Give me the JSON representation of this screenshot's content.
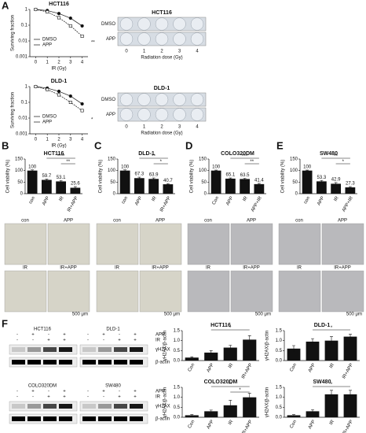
{
  "panels": [
    "A",
    "B",
    "C",
    "D",
    "E",
    "F"
  ],
  "chart_data": [
    {
      "type": "line",
      "title": "HCT116",
      "x": [
        0,
        1,
        2,
        3,
        4
      ],
      "xlim": [
        -0.5,
        4.5
      ],
      "xticks": [
        0,
        1,
        2,
        3,
        4
      ],
      "xlabel": "IR (Gy)",
      "ylabel": "Surviving fraction",
      "log_scale": true,
      "ylim": [
        0.001,
        1
      ],
      "yticks": [
        0.001,
        0.01,
        0.1,
        1
      ],
      "annotations": [
        "**"
      ],
      "series": [
        {
          "name": "DMSO",
          "color": "#111111",
          "marker": "circle",
          "values": [
            1,
            0.85,
            0.55,
            0.28,
            0.09
          ]
        },
        {
          "name": "APP",
          "color": "#111111",
          "marker": "square",
          "values": [
            1,
            0.7,
            0.3,
            0.09,
            0.02
          ]
        }
      ]
    },
    {
      "type": "line",
      "title": "DLD-1",
      "x": [
        0,
        1,
        2,
        3,
        4
      ],
      "xlim": [
        -0.5,
        4.5
      ],
      "xticks": [
        0,
        1,
        2,
        3,
        4
      ],
      "xlabel": "IR (Gy)",
      "ylabel": "Surviving fraction",
      "log_scale": true,
      "ylim": [
        0.001,
        1
      ],
      "yticks": [
        0.001,
        0.01,
        0.1,
        1
      ],
      "annotations": [
        "*"
      ],
      "series": [
        {
          "name": "DMSO",
          "color": "#111111",
          "marker": "circle",
          "values": [
            1,
            0.8,
            0.5,
            0.25,
            0.08
          ]
        },
        {
          "name": "APP",
          "color": "#111111",
          "marker": "square",
          "values": [
            1,
            0.65,
            0.3,
            0.1,
            0.03
          ]
        }
      ]
    },
    {
      "type": "bar",
      "title": "HCT116",
      "categories": [
        "con",
        "APP",
        "IR",
        "IR+APP"
      ],
      "values": [
        100,
        59.7,
        53.1,
        25.6
      ],
      "errors": [
        3,
        3,
        4,
        5
      ],
      "color": "#111111",
      "ylabel": "Cell viability (%)",
      "ylim": [
        0,
        150
      ],
      "yticks": [
        0,
        50,
        100,
        150
      ],
      "annotations": [
        "****",
        "**"
      ]
    },
    {
      "type": "bar",
      "title": "DLD-1",
      "categories": [
        "con",
        "APP",
        "IR",
        "IR+APP"
      ],
      "values": [
        100,
        67.3,
        63.9,
        40.7
      ],
      "errors": [
        3,
        4,
        4,
        3
      ],
      "color": "#111111",
      "ylabel": "Cell viability (%)",
      "ylim": [
        0,
        150
      ],
      "yticks": [
        0,
        50,
        100,
        150
      ],
      "annotations": [
        "**",
        "*"
      ]
    },
    {
      "type": "bar",
      "title": "COLO320DM",
      "categories": [
        "Con",
        "APP",
        "IR",
        "APP+IR"
      ],
      "values": [
        100,
        65.1,
        63.5,
        41.4
      ],
      "errors": [
        2,
        3,
        3,
        3
      ],
      "color": "#111111",
      "ylabel": "Cell viability (%)",
      "ylim": [
        0,
        150
      ],
      "yticks": [
        0,
        50,
        100,
        150
      ],
      "annotations": [
        "***",
        "**"
      ]
    },
    {
      "type": "bar",
      "title": "SW480",
      "categories": [
        "con",
        "APP",
        "IR",
        "APP+IR"
      ],
      "values": [
        100,
        53.3,
        42.9,
        27.3
      ],
      "errors": [
        2,
        4,
        5,
        3
      ],
      "color": "#111111",
      "ylabel": "Cell viability (%)",
      "ylim": [
        0,
        150
      ],
      "yticks": [
        0,
        50,
        100,
        150
      ],
      "annotations": [
        "**",
        "*"
      ]
    },
    {
      "type": "bar",
      "title": "HCT116",
      "categories": [
        "Con",
        "APP",
        "IR",
        "IR+APP"
      ],
      "values": [
        0.15,
        0.4,
        0.65,
        1.05
      ],
      "errors": [
        0.04,
        0.1,
        0.12,
        0.2
      ],
      "color": "#111111",
      "ylabel": "γH2AX/β-actin",
      "ylim": [
        0,
        1.5
      ],
      "yticks": [
        {
          "value": 0,
          "label": "0.0"
        },
        0.5,
        {
          "value": 1,
          "label": "1.0"
        },
        1.5
      ],
      "annotations": [
        "*"
      ]
    },
    {
      "type": "bar",
      "title": "DLD-1",
      "categories": [
        "Con",
        "APP",
        "IR",
        "IR+APP"
      ],
      "values": [
        0.6,
        0.95,
        1.0,
        1.2
      ],
      "errors": [
        0.15,
        0.15,
        0.2,
        0.12
      ],
      "color": "#111111",
      "ylabel": "γH2AX/β-actin",
      "ylim": [
        0,
        1.5
      ],
      "yticks": [
        {
          "value": 0,
          "label": "0.0"
        },
        0.5,
        {
          "value": 1,
          "label": "1.0"
        },
        1.5
      ],
      "annotations": [
        "*"
      ]
    },
    {
      "type": "bar",
      "title": "COLO320DM",
      "categories": [
        "Con",
        "APP",
        "IR",
        "IR+APP"
      ],
      "values": [
        0.1,
        0.3,
        0.6,
        1.0
      ],
      "errors": [
        0.03,
        0.06,
        0.25,
        0.2
      ],
      "color": "#111111",
      "ylabel": "γH2AX/β-actin",
      "ylim": [
        0,
        1.5
      ],
      "yticks": [
        {
          "value": 0,
          "label": "0.0"
        },
        0.5,
        {
          "value": 1,
          "label": "1.0"
        },
        1.5
      ],
      "annotations": [
        "**",
        "*"
      ]
    },
    {
      "type": "bar",
      "title": "SW480",
      "categories": [
        "Con",
        "APP",
        "IR",
        "IR+APP"
      ],
      "values": [
        0.1,
        0.3,
        1.15,
        1.15
      ],
      "errors": [
        0.03,
        0.08,
        0.2,
        0.2
      ],
      "color": "#111111",
      "ylabel": "γH2AX/β-actin",
      "ylim": [
        0,
        1.5
      ],
      "yticks": [
        {
          "value": 0,
          "label": "0.0"
        },
        0.5,
        {
          "value": 1,
          "label": "1.0"
        },
        1.5
      ],
      "annotations": [
        "*"
      ]
    }
  ],
  "plates": [
    {
      "title": "HCT116",
      "rows": [
        "DMSO",
        "APP"
      ],
      "doses": [
        "0",
        "1",
        "2",
        "3",
        "4"
      ],
      "xlabel": "Radiation dose (Gy)"
    },
    {
      "title": "DLD-1",
      "rows": [
        "DMSO",
        "APP"
      ],
      "doses": [
        "0",
        "1",
        "2",
        "3",
        "4"
      ],
      "xlabel": "Radiation dose (Gy)"
    }
  ],
  "micrographs": [
    {
      "labels": [
        "con",
        "APP",
        "IR",
        "IR+APP"
      ],
      "scale": "500 μm"
    },
    {
      "labels": [
        "con",
        "APP",
        "IR",
        "IR+APP"
      ],
      "scale": "500 μm"
    },
    {
      "labels": [
        "con",
        "APP",
        "IR",
        "IR+APP"
      ],
      "scale": "500 μm"
    },
    {
      "labels": [
        "con",
        "APP",
        "IR",
        "IR+APP"
      ],
      "scale": "500 μm"
    }
  ],
  "blots": [
    {
      "lines": [
        "HCT116",
        "DLD-1"
      ],
      "rows": [
        "APP",
        "IR"
      ],
      "app_signs": [
        "-",
        "+",
        "-",
        "+"
      ],
      "ir_signs": [
        "-",
        "-",
        "+",
        "+"
      ],
      "bands": [
        "γH2AX",
        "β-actin"
      ]
    },
    {
      "lines": [
        "COLO320DM",
        "SW480"
      ],
      "rows": [
        "APP",
        "IR"
      ],
      "app_signs": [
        "-",
        "+",
        "-",
        "+"
      ],
      "ir_signs": [
        "-",
        "-",
        "+",
        "+"
      ],
      "bands": [
        "γH2AX",
        "β-actin"
      ]
    }
  ]
}
